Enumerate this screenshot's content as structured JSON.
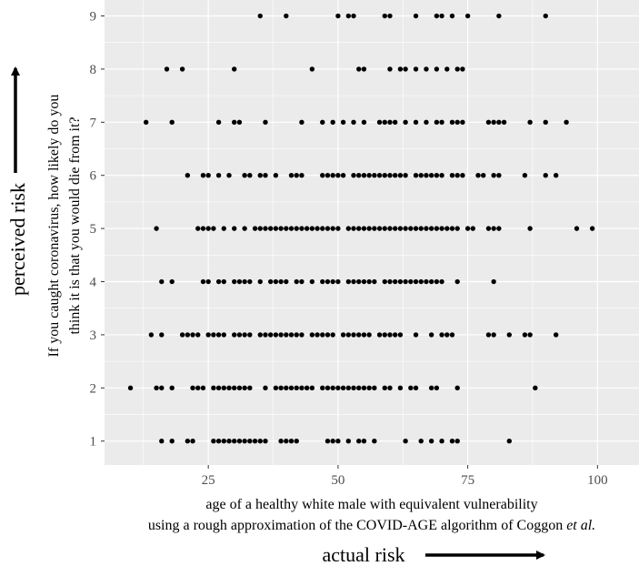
{
  "chart_data": {
    "type": "scatter",
    "xlabel_line1": "age of a healthy white male with equivalent vulnerability",
    "xlabel_line2_prefix": "using a rough approximation of the COVID-AGE algorithm of Coggon ",
    "xlabel_line2_italic": "et al.",
    "ylabel_line1": "If you caught coronavirus, how likely do you",
    "ylabel_line2": "think it is that you would die from it?",
    "outer_xlabel": "actual risk",
    "outer_ylabel": "perceived risk",
    "xlim": [
      5,
      108
    ],
    "ylim": [
      0.55,
      9.3
    ],
    "x_ticks": [
      25,
      50,
      75,
      100
    ],
    "y_ticks": [
      1,
      2,
      3,
      4,
      5,
      6,
      7,
      8,
      9
    ],
    "grid": true,
    "colors": {
      "panel": "#ebebeb",
      "grid": "#ffffff",
      "point": "#000000",
      "text": "#000000",
      "tick_label": "#4d4d4d"
    },
    "series": [
      {
        "y": 1,
        "x": [
          16,
          18,
          21,
          22,
          26,
          27,
          28,
          29,
          30,
          31,
          32,
          33,
          34,
          35,
          36,
          39,
          40,
          41,
          42,
          48,
          49,
          50,
          52,
          54,
          55,
          57,
          63,
          66,
          68,
          70,
          72,
          73,
          83
        ]
      },
      {
        "y": 2,
        "x": [
          10,
          15,
          16,
          18,
          22,
          23,
          24,
          26,
          27,
          28,
          29,
          30,
          31,
          32,
          33,
          36,
          38,
          39,
          40,
          41,
          42,
          43,
          44,
          45,
          47,
          48,
          49,
          50,
          51,
          52,
          53,
          54,
          55,
          56,
          57,
          59,
          60,
          62,
          64,
          65,
          68,
          69,
          73,
          88
        ]
      },
      {
        "y": 3,
        "x": [
          14,
          16,
          20,
          21,
          22,
          23,
          25,
          26,
          27,
          28,
          30,
          31,
          32,
          33,
          35,
          36,
          37,
          38,
          39,
          40,
          41,
          42,
          43,
          45,
          46,
          47,
          48,
          49,
          51,
          52,
          53,
          54,
          55,
          56,
          58,
          59,
          60,
          61,
          62,
          65,
          68,
          70,
          71,
          72,
          79,
          80,
          83,
          86,
          87,
          92
        ]
      },
      {
        "y": 4,
        "x": [
          16,
          18,
          24,
          25,
          27,
          28,
          30,
          31,
          32,
          33,
          35,
          37,
          38,
          39,
          40,
          42,
          43,
          45,
          47,
          48,
          49,
          50,
          52,
          53,
          54,
          55,
          56,
          57,
          59,
          60,
          61,
          62,
          63,
          64,
          65,
          66,
          67,
          68,
          69,
          70,
          73,
          80
        ]
      },
      {
        "y": 5,
        "x": [
          15,
          23,
          24,
          25,
          26,
          28,
          30,
          32,
          34,
          35,
          36,
          37,
          38,
          39,
          40,
          41,
          42,
          43,
          44,
          45,
          46,
          47,
          48,
          49,
          50,
          52,
          53,
          54,
          55,
          56,
          57,
          58,
          59,
          60,
          61,
          62,
          63,
          64,
          65,
          66,
          67,
          68,
          69,
          70,
          71,
          72,
          73,
          75,
          76,
          79,
          80,
          81,
          87,
          96,
          99
        ]
      },
      {
        "y": 6,
        "x": [
          21,
          24,
          25,
          27,
          29,
          32,
          33,
          35,
          36,
          38,
          41,
          42,
          43,
          47,
          48,
          49,
          50,
          51,
          53,
          54,
          55,
          56,
          57,
          58,
          59,
          60,
          61,
          62,
          63,
          65,
          66,
          67,
          68,
          69,
          70,
          72,
          73,
          74,
          77,
          78,
          80,
          81,
          86,
          90,
          92
        ]
      },
      {
        "y": 7,
        "x": [
          13,
          18,
          27,
          30,
          31,
          36,
          43,
          47,
          49,
          51,
          53,
          55,
          58,
          59,
          60,
          61,
          63,
          65,
          67,
          69,
          70,
          72,
          73,
          74,
          79,
          80,
          81,
          82,
          87,
          90,
          94
        ]
      },
      {
        "y": 8,
        "x": [
          17,
          20,
          30,
          45,
          54,
          55,
          60,
          62,
          63,
          65,
          67,
          69,
          71,
          73,
          74
        ]
      },
      {
        "y": 9,
        "x": [
          35,
          40,
          50,
          52,
          53,
          59,
          60,
          65,
          69,
          70,
          72,
          75,
          81,
          90
        ]
      }
    ]
  }
}
